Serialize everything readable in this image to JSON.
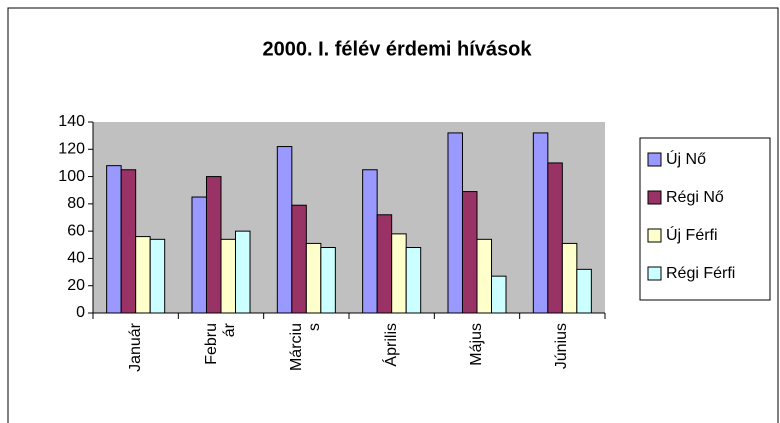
{
  "chart_data": {
    "type": "bar",
    "title": "2000. I. félév érdemi hívások",
    "categories": [
      "Január",
      "Febru\nár",
      "Márciu\ns",
      "Április",
      "Május",
      "Június"
    ],
    "series": [
      {
        "name": "Új Nő",
        "color": "#9999ff",
        "values": [
          108,
          85,
          122,
          105,
          132,
          132
        ]
      },
      {
        "name": "Régi Nő",
        "color": "#993366",
        "values": [
          105,
          100,
          79,
          72,
          89,
          110
        ]
      },
      {
        "name": "Új Férfi",
        "color": "#ffffcc",
        "values": [
          56,
          54,
          51,
          58,
          54,
          51
        ]
      },
      {
        "name": "Régi Férfi",
        "color": "#ccffff",
        "values": [
          54,
          60,
          48,
          48,
          27,
          32
        ]
      }
    ],
    "ylim": [
      0,
      140
    ],
    "yticks": [
      0,
      20,
      40,
      60,
      80,
      100,
      120,
      140
    ],
    "legend": "right"
  }
}
